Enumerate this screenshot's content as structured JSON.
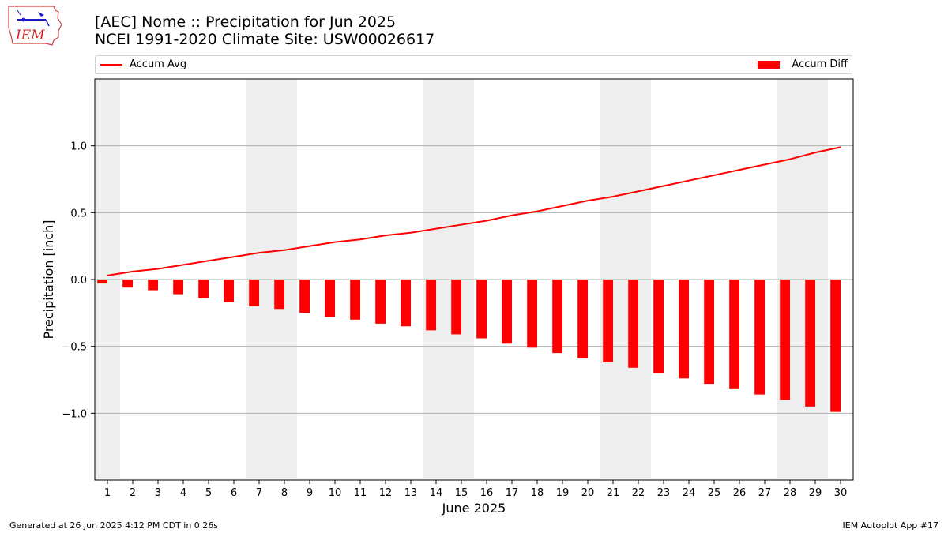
{
  "header": {
    "logo_text": "IEM",
    "title_line1": "[AEC] Nome :: Precipitation for Jun 2025",
    "title_line2": "NCEI 1991-2020 Climate Site: USW00026617"
  },
  "legend": {
    "avg_label": "Accum Avg",
    "diff_label": "Accum Diff"
  },
  "footer": {
    "generated": "Generated at 26 Jun 2025 4:12 PM CDT in 0.26s",
    "app": "IEM Autoplot App #17"
  },
  "chart_data": {
    "type": "bar",
    "title": "[AEC] Nome :: Precipitation for Jun 2025",
    "subtitle": "NCEI 1991-2020 Climate Site: USW00026617",
    "xlabel": "June 2025",
    "ylabel": "Precipitation [inch]",
    "x": [
      1,
      2,
      3,
      4,
      5,
      6,
      7,
      8,
      9,
      10,
      11,
      12,
      13,
      14,
      15,
      16,
      17,
      18,
      19,
      20,
      21,
      22,
      23,
      24,
      25,
      26,
      27,
      28,
      29,
      30
    ],
    "ylim": [
      -1.5,
      1.5
    ],
    "yticks": [
      -1.0,
      -0.5,
      0.0,
      0.5,
      1.0
    ],
    "ytick_labels": [
      "−1.0",
      "−0.5",
      "0.0",
      "0.5",
      "1.0"
    ],
    "grid": "horizontal",
    "legend_placement": "top",
    "weekend_shading": [
      [
        1,
        1
      ],
      [
        7,
        8
      ],
      [
        14,
        15
      ],
      [
        21,
        22
      ],
      [
        28,
        29
      ]
    ],
    "series": [
      {
        "name": "Accum Diff",
        "kind": "bar",
        "color": "#ff0000",
        "values": [
          -0.03,
          -0.06,
          -0.08,
          -0.11,
          -0.14,
          -0.17,
          -0.2,
          -0.22,
          -0.25,
          -0.28,
          -0.3,
          -0.33,
          -0.35,
          -0.38,
          -0.41,
          -0.44,
          -0.48,
          -0.51,
          -0.55,
          -0.59,
          -0.62,
          -0.66,
          -0.7,
          -0.74,
          -0.78,
          -0.82,
          -0.86,
          -0.9,
          -0.95,
          -0.99
        ]
      },
      {
        "name": "Accum Avg",
        "kind": "line",
        "color": "#ff0000",
        "values": [
          0.03,
          0.06,
          0.08,
          0.11,
          0.14,
          0.17,
          0.2,
          0.22,
          0.25,
          0.28,
          0.3,
          0.33,
          0.35,
          0.38,
          0.41,
          0.44,
          0.48,
          0.51,
          0.55,
          0.59,
          0.62,
          0.66,
          0.7,
          0.74,
          0.78,
          0.82,
          0.86,
          0.9,
          0.95,
          0.99
        ]
      }
    ]
  }
}
